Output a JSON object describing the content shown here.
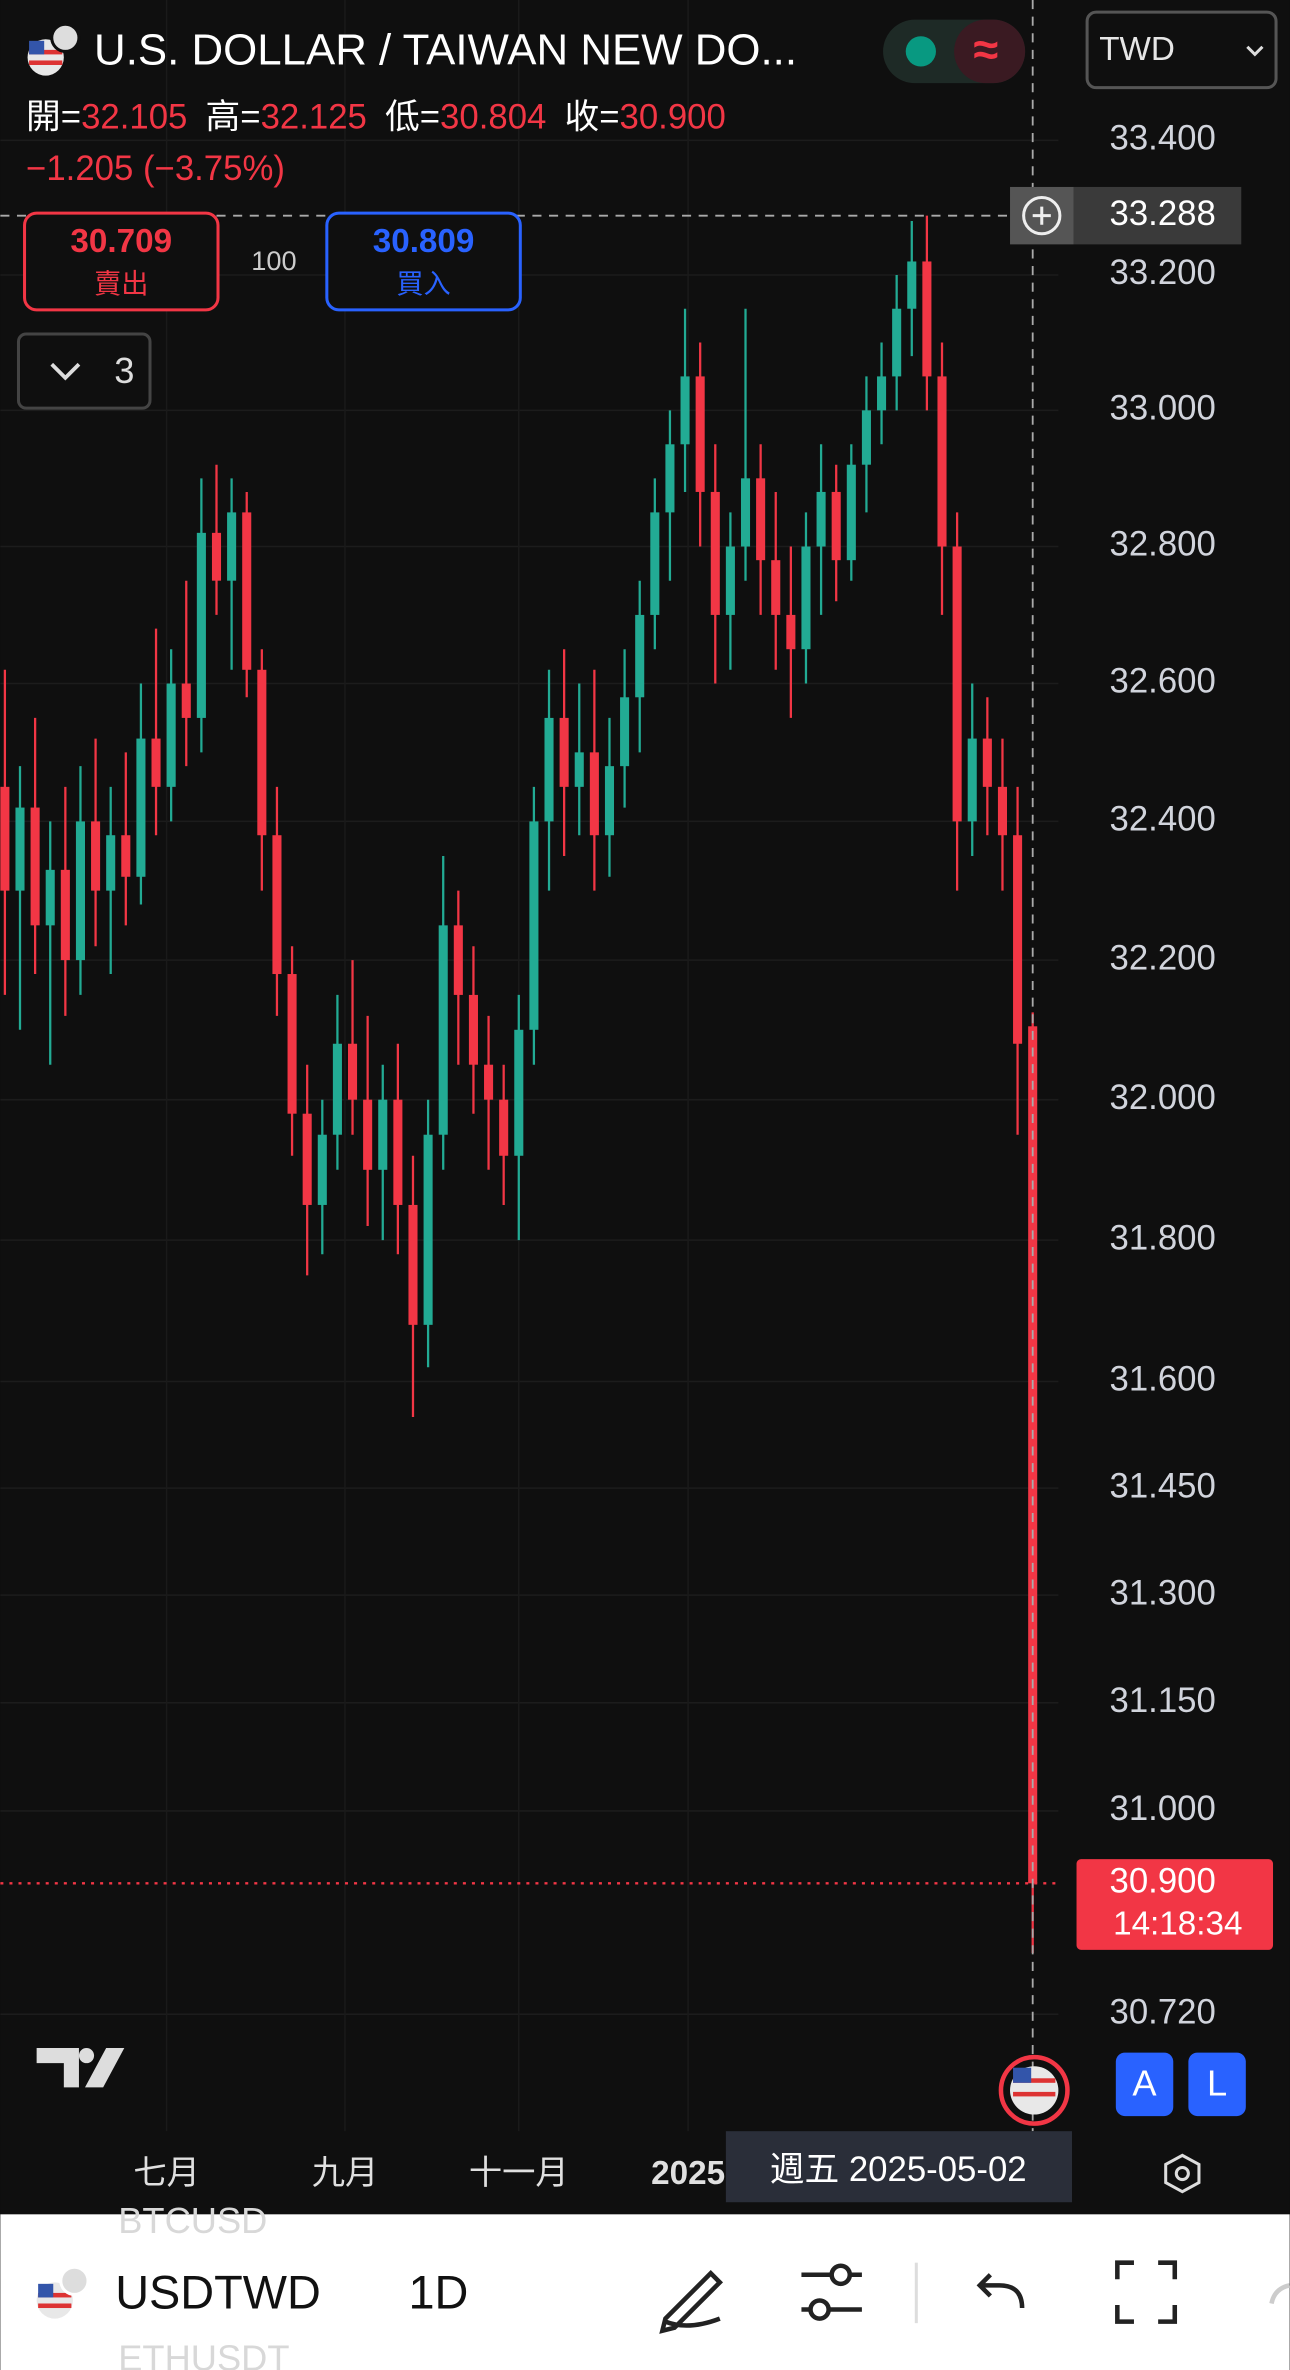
{
  "ui": {
    "title": "U.S. DOLLAR / TAIWAN NEW DO...",
    "status_icon": "≈",
    "currency": "TWD",
    "ohlc": {
      "open_label": "開=",
      "open": "32.105",
      "high_label": "高=",
      "high": "32.125",
      "low_label": "低=",
      "low": "30.804",
      "close_label": "收=",
      "close": "30.900"
    },
    "change": "−1.205 (−3.75%)",
    "sell": {
      "price": "30.709",
      "label": "賣出"
    },
    "spread": "100",
    "buy": {
      "price": "30.809",
      "label": "買入"
    },
    "indicators_count": "3",
    "button_a": "A",
    "button_l": "L",
    "symbol": "USDTWD",
    "interval": "1D",
    "ghost_above": "BTCUSD",
    "ghost_below": "ETHUSDT"
  },
  "chart_data": {
    "type": "candlestick",
    "log_scale": true,
    "grid": true,
    "up_color": "#22ab94",
    "down_color": "#f23645",
    "ylim": [
      30.56,
      33.61
    ],
    "yticks": [
      {
        "value": 33.4,
        "label": "33.400"
      },
      {
        "value": 33.2,
        "label": "33.200"
      },
      {
        "value": 33.0,
        "label": "33.000"
      },
      {
        "value": 32.8,
        "label": "32.800"
      },
      {
        "value": 32.6,
        "label": "32.600"
      },
      {
        "value": 32.4,
        "label": "32.400"
      },
      {
        "value": 32.2,
        "label": "32.200"
      },
      {
        "value": 32.0,
        "label": "32.000"
      },
      {
        "value": 31.8,
        "label": "31.800"
      },
      {
        "value": 31.6,
        "label": "31.600"
      },
      {
        "value": 31.45,
        "label": "31.450"
      },
      {
        "value": 31.3,
        "label": "31.300"
      },
      {
        "value": 31.15,
        "label": "31.150"
      },
      {
        "value": 31.0,
        "label": "31.000"
      },
      {
        "value": 30.72,
        "label": "30.720"
      }
    ],
    "xlim": [
      0,
      68
    ],
    "xticks": [
      {
        "value": 10.7,
        "label": "七月"
      },
      {
        "value": 22.5,
        "label": "九月"
      },
      {
        "value": 34,
        "label": "十一月"
      },
      {
        "value": 45.2,
        "label": "2025"
      }
    ],
    "crosshair": {
      "price": {
        "value": 33.288,
        "label": "33.288"
      },
      "index": 68,
      "date": "週五 2025-05-02"
    },
    "last_price": {
      "value": 30.9,
      "label": "30.900",
      "countdown": "14:18:34"
    },
    "open": [
      32.45,
      32.3,
      32.42,
      32.25,
      32.33,
      32.2,
      32.4,
      32.3,
      32.38,
      32.32,
      32.52,
      32.45,
      32.6,
      32.55,
      32.82,
      32.75,
      32.85,
      32.62,
      32.38,
      32.18,
      31.98,
      31.85,
      31.95,
      32.08,
      32.0,
      31.9,
      32.0,
      31.85,
      31.68,
      31.95,
      32.25,
      32.15,
      32.05,
      32.0,
      31.92,
      32.1,
      32.4,
      32.55,
      32.45,
      32.5,
      32.38,
      32.48,
      32.58,
      32.7,
      32.85,
      32.95,
      33.05,
      32.88,
      32.7,
      32.8,
      32.9,
      32.78,
      32.7,
      32.65,
      32.8,
      32.88,
      32.78,
      32.92,
      33.0,
      33.05,
      33.15,
      33.22,
      33.05,
      32.8,
      32.4,
      32.52,
      32.45,
      32.38,
      32.105
    ],
    "high": [
      32.62,
      32.48,
      32.55,
      32.4,
      32.45,
      32.48,
      32.52,
      32.45,
      32.5,
      32.6,
      32.68,
      32.65,
      32.75,
      32.9,
      32.92,
      32.9,
      32.88,
      32.65,
      32.45,
      32.22,
      32.05,
      32.0,
      32.15,
      32.2,
      32.12,
      32.05,
      32.08,
      31.92,
      32.0,
      32.35,
      32.3,
      32.22,
      32.12,
      32.05,
      32.15,
      32.45,
      32.62,
      32.65,
      32.6,
      32.62,
      32.55,
      32.65,
      32.75,
      32.9,
      33.0,
      33.15,
      33.1,
      32.95,
      32.85,
      33.15,
      32.95,
      32.88,
      32.8,
      32.85,
      32.95,
      32.92,
      32.95,
      33.05,
      33.1,
      33.2,
      33.28,
      33.288,
      33.1,
      32.85,
      32.6,
      32.58,
      32.52,
      32.45,
      32.125
    ],
    "low": [
      32.15,
      32.1,
      32.18,
      32.05,
      32.12,
      32.15,
      32.22,
      32.18,
      32.25,
      32.28,
      32.38,
      32.4,
      32.48,
      32.5,
      32.7,
      32.62,
      32.58,
      32.3,
      32.12,
      31.92,
      31.75,
      31.78,
      31.9,
      31.95,
      31.82,
      31.8,
      31.78,
      31.55,
      31.62,
      31.9,
      32.05,
      31.98,
      31.9,
      31.85,
      31.8,
      32.05,
      32.3,
      32.35,
      32.38,
      32.3,
      32.32,
      32.42,
      32.5,
      32.65,
      32.75,
      32.88,
      32.8,
      32.6,
      32.62,
      32.75,
      32.7,
      32.62,
      32.55,
      32.6,
      32.7,
      32.72,
      32.75,
      32.85,
      32.95,
      33.0,
      33.08,
      33.0,
      32.7,
      32.3,
      32.35,
      32.38,
      32.3,
      31.95,
      30.804
    ],
    "close": [
      32.3,
      32.42,
      32.25,
      32.33,
      32.2,
      32.4,
      32.3,
      32.38,
      32.32,
      32.52,
      32.45,
      32.6,
      32.55,
      32.82,
      32.75,
      32.85,
      32.62,
      32.38,
      32.18,
      31.98,
      31.85,
      31.95,
      32.08,
      32.0,
      31.9,
      32.0,
      31.85,
      31.68,
      31.95,
      32.25,
      32.15,
      32.05,
      32.0,
      31.92,
      32.1,
      32.4,
      32.55,
      32.45,
      32.5,
      32.38,
      32.48,
      32.58,
      32.7,
      32.85,
      32.95,
      33.05,
      32.88,
      32.7,
      32.8,
      32.9,
      32.78,
      32.7,
      32.65,
      32.8,
      32.88,
      32.78,
      32.92,
      33.0,
      33.05,
      33.15,
      33.22,
      33.05,
      32.8,
      32.4,
      32.52,
      32.45,
      32.38,
      32.08,
      30.9
    ]
  }
}
